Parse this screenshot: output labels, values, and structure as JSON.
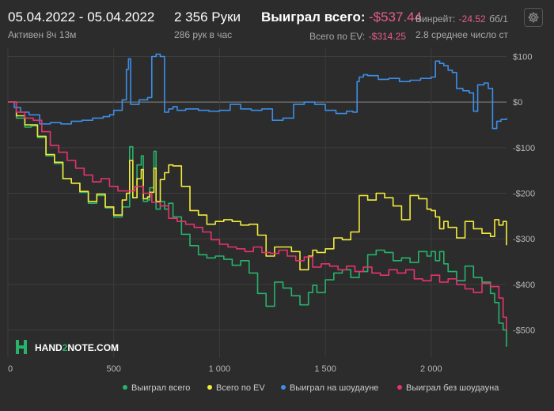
{
  "header": {
    "date_range": "05.04.2022 - 05.04.2022",
    "active": "Активен 8ч 13м",
    "hands": "2 356 Руки",
    "hands_per_hour": "286 рук в час",
    "won_total_label": "Выиграл всего:",
    "won_total_value": "-$537.44",
    "ev_label": "Всего по EV:",
    "ev_value": "-$314.25",
    "winrate_label": "Винрейт:",
    "winrate_value": "-24.52",
    "winrate_unit": "бб/1",
    "avg_label": "2.8 среднее число ст"
  },
  "colors": {
    "background": "#2c2c2c",
    "grid": "#3d3d3d",
    "zero_line": "#8a8a8a",
    "negative": "#e85d8a",
    "won_total": "#26b36b",
    "ev": "#f2ec3a",
    "showdown": "#3c8ee6",
    "non_showdown": "#e6336e"
  },
  "logo": {
    "text_a": "HAND",
    "text_b": "2",
    "text_c": "NOTE.COM"
  },
  "chart_data": {
    "type": "line",
    "xlim": [
      0,
      2356
    ],
    "ylim": [
      -560,
      120
    ],
    "x_ticks": [
      0,
      500,
      1000,
      1500,
      2000
    ],
    "x_tick_labels": [
      "0",
      "500",
      "1 000",
      "1 500",
      "2 000"
    ],
    "y_ticks": [
      100,
      0,
      -100,
      -200,
      -300,
      -400,
      -500
    ],
    "y_tick_labels": [
      "$100",
      "$0",
      "-$100",
      "-$200",
      "-$300",
      "-$400",
      "-$500"
    ],
    "grid": true,
    "legend_position": "bottom",
    "series": [
      {
        "name": "Выиграл всего",
        "color_key": "won_total",
        "x": [
          0,
          40,
          80,
          110,
          140,
          180,
          220,
          260,
          300,
          340,
          380,
          420,
          460,
          500,
          540,
          560,
          575,
          590,
          610,
          630,
          640,
          660,
          670,
          690,
          700,
          720,
          740,
          760,
          780,
          820,
          860,
          900,
          940,
          980,
          1020,
          1060,
          1100,
          1140,
          1180,
          1220,
          1260,
          1300,
          1340,
          1380,
          1420,
          1440,
          1460,
          1500,
          1540,
          1580,
          1620,
          1660,
          1700,
          1740,
          1780,
          1820,
          1860,
          1900,
          1940,
          1980,
          2000,
          2020,
          2040,
          2060,
          2080,
          2120,
          2160,
          2200,
          2240,
          2280,
          2300,
          2320,
          2340,
          2356
        ],
        "y": [
          0,
          -35,
          -55,
          -52,
          -78,
          -118,
          -135,
          -168,
          -178,
          -198,
          -222,
          -205,
          -232,
          -252,
          -230,
          -230,
          -98,
          -210,
          -138,
          -118,
          -218,
          -215,
          -188,
          -108,
          -235,
          -218,
          -235,
          -222,
          -252,
          -290,
          -315,
          -335,
          -342,
          -338,
          -345,
          -358,
          -348,
          -375,
          -420,
          -448,
          -395,
          -408,
          -425,
          -445,
          -418,
          -402,
          -418,
          -390,
          -375,
          -368,
          -385,
          -372,
          -335,
          -325,
          -330,
          -348,
          -342,
          -352,
          -328,
          -338,
          -328,
          -348,
          -328,
          -355,
          -372,
          -392,
          -360,
          -385,
          -395,
          -420,
          -440,
          -485,
          -500,
          -537
        ]
      },
      {
        "name": "Всего по EV",
        "color_key": "ev",
        "x": [
          0,
          40,
          80,
          110,
          140,
          180,
          220,
          260,
          300,
          340,
          380,
          420,
          460,
          500,
          540,
          560,
          575,
          590,
          610,
          630,
          640,
          660,
          670,
          690,
          700,
          720,
          740,
          760,
          780,
          820,
          860,
          900,
          940,
          980,
          1020,
          1060,
          1100,
          1140,
          1180,
          1220,
          1260,
          1300,
          1340,
          1380,
          1420,
          1440,
          1460,
          1500,
          1540,
          1580,
          1620,
          1660,
          1700,
          1740,
          1780,
          1820,
          1860,
          1900,
          1940,
          1980,
          2000,
          2020,
          2040,
          2060,
          2080,
          2120,
          2160,
          2200,
          2240,
          2280,
          2300,
          2320,
          2340,
          2356
        ],
        "y": [
          0,
          -30,
          -50,
          -50,
          -75,
          -115,
          -132,
          -168,
          -178,
          -196,
          -218,
          -202,
          -230,
          -248,
          -215,
          -200,
          -128,
          -210,
          -168,
          -148,
          -212,
          -208,
          -198,
          -145,
          -218,
          -170,
          -155,
          -138,
          -140,
          -185,
          -238,
          -248,
          -268,
          -262,
          -258,
          -262,
          -270,
          -268,
          -292,
          -338,
          -318,
          -318,
          -328,
          -368,
          -338,
          -325,
          -330,
          -322,
          -298,
          -302,
          -285,
          -205,
          -215,
          -200,
          -210,
          -228,
          -258,
          -205,
          -212,
          -235,
          -238,
          -252,
          -278,
          -262,
          -275,
          -298,
          -262,
          -278,
          -288,
          -295,
          -258,
          -270,
          -262,
          -314
        ]
      },
      {
        "name": "Выиграл на шоудауне",
        "color_key": "showdown",
        "x": [
          0,
          30,
          60,
          100,
          150,
          200,
          250,
          300,
          350,
          400,
          450,
          480,
          500,
          540,
          560,
          570,
          580,
          600,
          620,
          640,
          660,
          680,
          700,
          720,
          740,
          760,
          780,
          800,
          840,
          900,
          950,
          1000,
          1050,
          1100,
          1150,
          1200,
          1250,
          1300,
          1350,
          1400,
          1450,
          1500,
          1550,
          1600,
          1630,
          1650,
          1660,
          1680,
          1700,
          1750,
          1800,
          1850,
          1900,
          1950,
          2000,
          2020,
          2040,
          2060,
          2080,
          2100,
          2120,
          2150,
          2180,
          2200,
          2220,
          2250,
          2270,
          2290,
          2310,
          2330,
          2356
        ],
        "y": [
          0,
          -12,
          -22,
          -28,
          -48,
          -45,
          -48,
          -42,
          -40,
          -35,
          -32,
          -28,
          -18,
          5,
          72,
          95,
          -5,
          -5,
          5,
          5,
          10,
          100,
          105,
          100,
          -22,
          -15,
          -10,
          -18,
          -15,
          -18,
          -20,
          -18,
          -5,
          -15,
          -18,
          -15,
          -40,
          -35,
          -5,
          0,
          -5,
          -18,
          -25,
          -20,
          -22,
          45,
          55,
          60,
          58,
          50,
          52,
          45,
          48,
          52,
          55,
          90,
          85,
          80,
          70,
          65,
          30,
          25,
          20,
          -20,
          38,
          42,
          30,
          -58,
          -42,
          -38,
          -35
        ]
      },
      {
        "name": "Выиграл без шоудауна",
        "color_key": "non_showdown",
        "x": [
          0,
          40,
          80,
          120,
          160,
          200,
          240,
          280,
          320,
          360,
          400,
          440,
          480,
          520,
          560,
          600,
          640,
          680,
          720,
          760,
          800,
          840,
          880,
          920,
          960,
          1000,
          1040,
          1080,
          1120,
          1160,
          1200,
          1240,
          1280,
          1320,
          1360,
          1400,
          1440,
          1480,
          1520,
          1560,
          1600,
          1640,
          1680,
          1720,
          1760,
          1800,
          1840,
          1880,
          1920,
          1960,
          2000,
          2040,
          2080,
          2120,
          2160,
          2200,
          2240,
          2280,
          2320,
          2340,
          2356
        ],
        "y": [
          0,
          -22,
          -35,
          -40,
          -65,
          -95,
          -110,
          -128,
          -145,
          -160,
          -175,
          -168,
          -185,
          -195,
          -195,
          -185,
          -200,
          -220,
          -228,
          -255,
          -262,
          -268,
          -275,
          -285,
          -302,
          -312,
          -318,
          -322,
          -328,
          -318,
          -330,
          -332,
          -325,
          -338,
          -348,
          -340,
          -362,
          -355,
          -360,
          -368,
          -360,
          -372,
          -362,
          -375,
          -380,
          -368,
          -375,
          -368,
          -388,
          -392,
          -380,
          -395,
          -388,
          -400,
          -410,
          -418,
          -398,
          -405,
          -430,
          -472,
          -500
        ]
      }
    ]
  }
}
